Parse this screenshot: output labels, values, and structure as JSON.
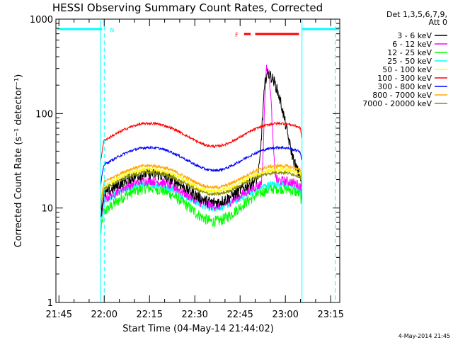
{
  "chart_data": {
    "type": "line",
    "title": "HESSI Observing Summary Count Rates, Corrected",
    "xlabel": "Start Time (04-May-14 21:44:02)",
    "ylabel": "Corrected Count Rate (s⁻¹ detector⁻¹)",
    "ylim": [
      1,
      1000
    ],
    "yscale": "log",
    "xlim_minutes": [
      -1,
      93
    ],
    "x_ticks": [
      {
        "label": "21:45",
        "minute": 0
      },
      {
        "label": "22:00",
        "minute": 15
      },
      {
        "label": "22:15",
        "minute": 30
      },
      {
        "label": "22:30",
        "minute": 45
      },
      {
        "label": "22:45",
        "minute": 60
      },
      {
        "label": "23:00",
        "minute": 75
      },
      {
        "label": "23:15",
        "minute": 90
      }
    ],
    "y_ticks": [
      {
        "label": "1",
        "value": 1
      },
      {
        "label": "10",
        "value": 10
      },
      {
        "label": "100",
        "value": 100
      },
      {
        "label": "1000",
        "value": 1000
      }
    ],
    "legend": {
      "title_lines": [
        "Det 1,3,5,6,7,9,",
        "Att 0"
      ],
      "placement": "outside-right"
    },
    "series": [
      {
        "name": "3 - 6 keV",
        "color": "#000000",
        "base": 11.5,
        "amp": 2.0,
        "noise": 0.14,
        "flare": {
          "center": 69.0,
          "peak": 240,
          "rise": 1.0,
          "decay": 3.5
        }
      },
      {
        "name": "6 - 12 keV",
        "color": "#ff00ff",
        "base": 10.5,
        "amp": 1.85,
        "noise": 0.12,
        "flare": {
          "center": 69.0,
          "peak": 300,
          "rise": 0.6,
          "decay": 0.9
        }
      },
      {
        "name": "12 - 25 keV",
        "color": "#00ff00",
        "base": 7.2,
        "amp": 2.25,
        "noise": 0.14
      },
      {
        "name": "25 - 50 keV",
        "color": "#00ffff",
        "base": 10.0,
        "amp": 1.8,
        "noise": 0.09
      },
      {
        "name": "50 - 100 keV",
        "color": "#ffff00",
        "base": 15.0,
        "amp": 1.7,
        "noise": 0.05
      },
      {
        "name": "100 - 300 keV",
        "color": "#ff0000",
        "base": 45.0,
        "amp": 1.75,
        "noise": 0.03
      },
      {
        "name": "300 - 800 keV",
        "color": "#0000ff",
        "base": 25.0,
        "amp": 1.75,
        "noise": 0.03
      },
      {
        "name": "800 - 7000 keV",
        "color": "#ffa500",
        "base": 16.5,
        "amp": 1.7,
        "noise": 0.04
      },
      {
        "name": "7000 - 20000 keV",
        "color": "#8b8b00",
        "base": 14.0,
        "amp": 1.7,
        "noise": 0.04
      }
    ],
    "observing": {
      "data_start_minute": 13.8,
      "data_end_minute": 80.5,
      "night_label": "N",
      "flare_label": "F",
      "night_bars": [
        {
          "start": -0.5,
          "end": 14.3
        },
        {
          "start": 80.6,
          "end": 93.0
        }
      ],
      "night_dashes_minutes": [
        15.0,
        91.5
      ],
      "saa_solid_minutes": [
        13.8,
        80.5
      ],
      "flare_segments": [
        {
          "start": 61.3,
          "end": 63.5
        },
        {
          "start": 65.0,
          "end": 79.5
        }
      ]
    }
  },
  "footer": {
    "timestamp": "4-May-2014 21:45"
  }
}
